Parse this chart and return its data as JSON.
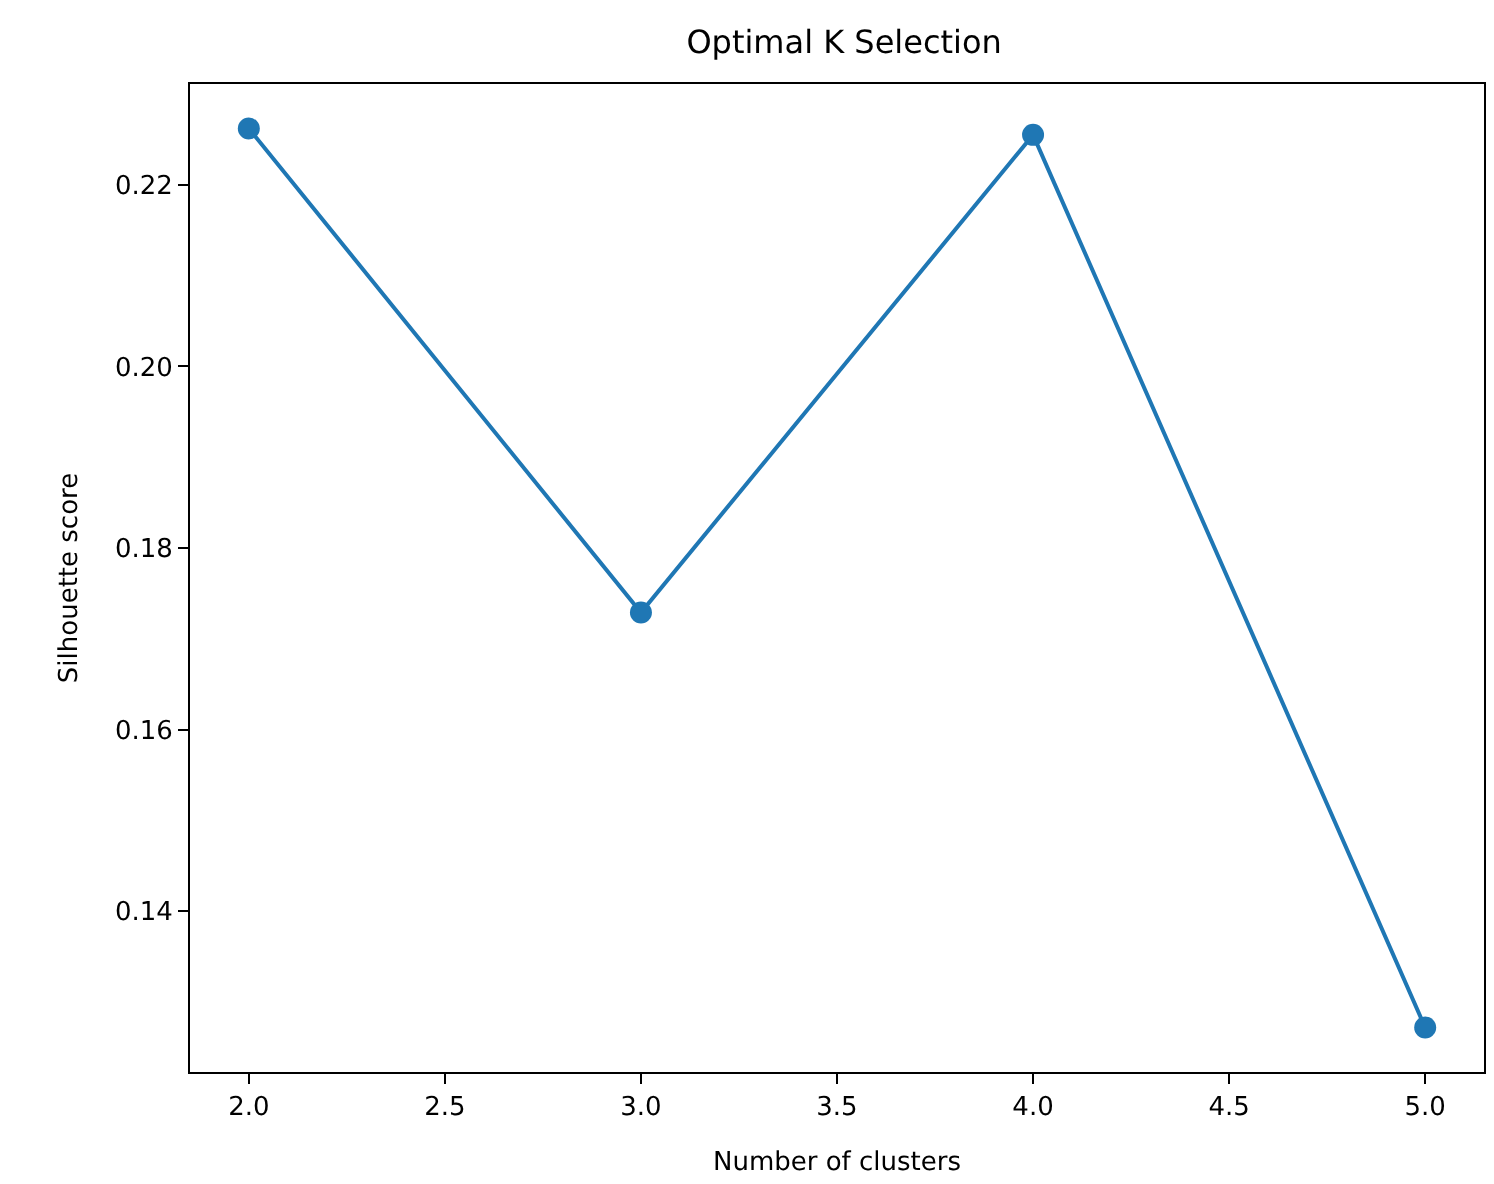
{
  "chart_data": {
    "type": "line",
    "title": "Optimal K Selection",
    "xlabel": "Number of clusters",
    "ylabel": "Silhouette score",
    "x": [
      2,
      3,
      4,
      5
    ],
    "series": [
      {
        "color": "#1f77b4",
        "values": [
          0.2262,
          0.1729,
          0.2255,
          0.1272
        ]
      }
    ],
    "xlim": [
      1.85,
      5.15
    ],
    "xticks": [
      {
        "value": 2,
        "label": "2.0"
      },
      {
        "value": 2.5,
        "label": "2.5"
      },
      {
        "value": 3,
        "label": "3.0"
      },
      {
        "value": 3.5,
        "label": "3.5"
      },
      {
        "value": 4,
        "label": "4.0"
      },
      {
        "value": 4.5,
        "label": "4.5"
      },
      {
        "value": 5,
        "label": "5.0"
      }
    ],
    "ylim": [
      0.1223,
      0.2311
    ],
    "yticks": [
      0.14,
      0.16,
      0.18,
      {
        "value": 0.2,
        "label": "0.20"
      },
      0.22
    ],
    "marker": "circle",
    "line_style": "solid",
    "legend": false
  }
}
